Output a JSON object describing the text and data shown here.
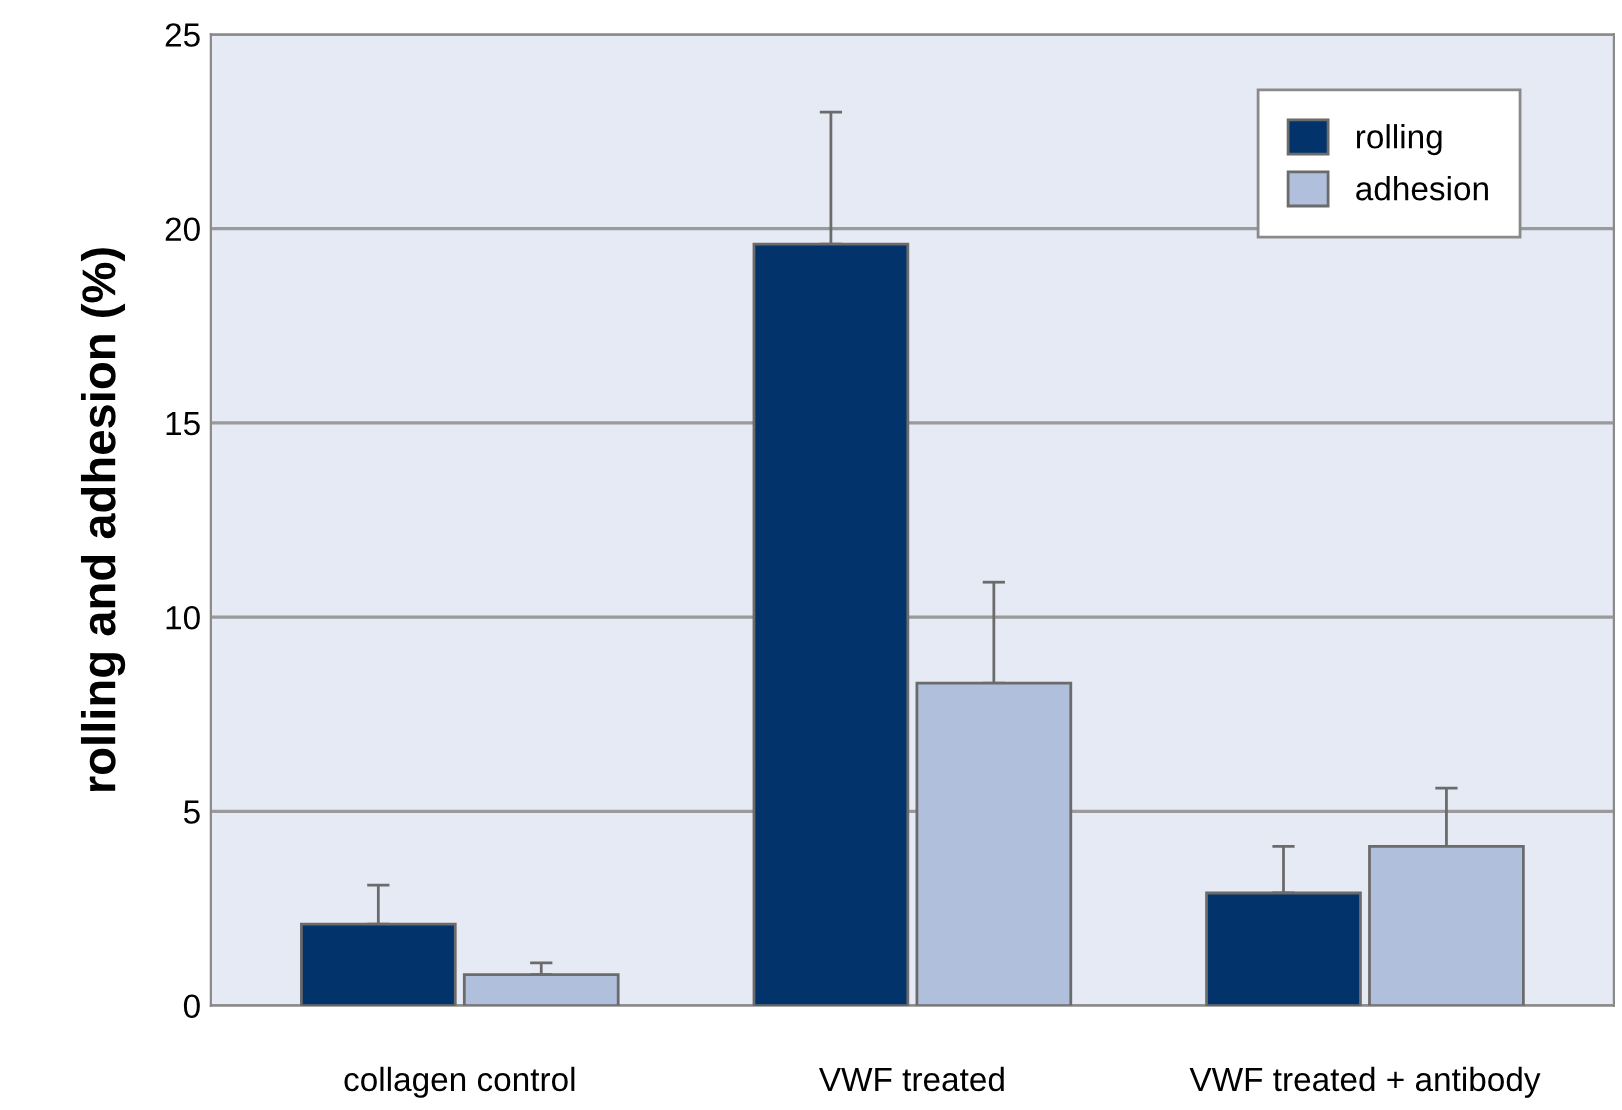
{
  "chart_data": {
    "type": "bar",
    "ylabel": "rolling and adhesion (%)",
    "categories": [
      "collagen control",
      "VWF treated",
      "VWF treated + antibody"
    ],
    "series": [
      {
        "name": "rolling",
        "color": "#02336a",
        "values": [
          2.1,
          19.6,
          2.9
        ],
        "errors": [
          [
            2.1,
            3.1
          ],
          [
            19.6,
            23.0
          ],
          [
            2.9,
            4.1
          ]
        ]
      },
      {
        "name": "adhesion",
        "color": "#b0bfdc",
        "values": [
          0.8,
          8.3,
          4.1
        ],
        "errors": [
          [
            0.8,
            1.1
          ],
          [
            8.3,
            10.9
          ],
          [
            4.1,
            5.6
          ]
        ]
      }
    ],
    "ylim": [
      0,
      25
    ],
    "yticks": [
      0,
      5,
      10,
      15,
      20,
      25
    ],
    "grid": "y",
    "legend": "top right"
  }
}
